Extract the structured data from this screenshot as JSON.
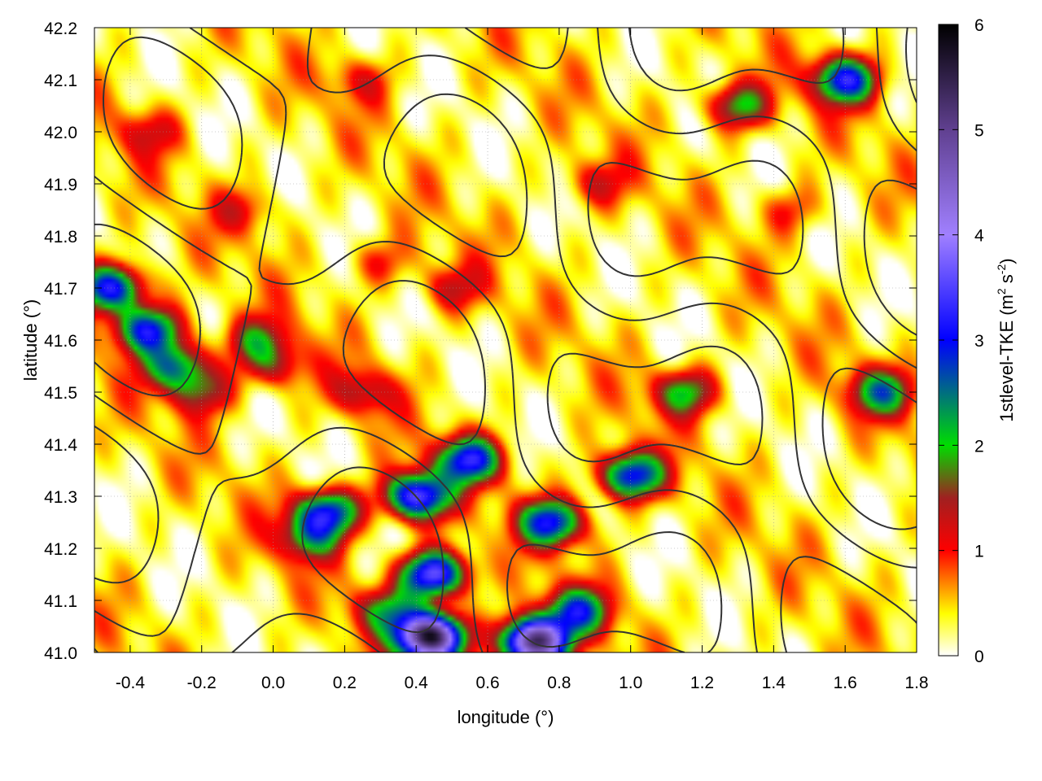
{
  "chart_data": {
    "type": "heatmap",
    "xlabel": "longitude (°)",
    "ylabel": "latitude (°)",
    "colorbar_label_main": "1stlevel-TKE (m",
    "colorbar_label_sup1": "2",
    "colorbar_label_mid": " s",
    "colorbar_label_sup2": "-2",
    "colorbar_label_end": ")",
    "xlim": [
      -0.5,
      1.8
    ],
    "ylim": [
      41.0,
      42.2
    ],
    "x_ticks": [
      -0.4,
      -0.2,
      0.0,
      0.2,
      0.4,
      0.6,
      0.8,
      1.0,
      1.2,
      1.4,
      1.6,
      1.8
    ],
    "x_tick_labels": [
      "-0.4",
      "-0.2",
      "0.0",
      "0.2",
      "0.4",
      "0.6",
      "0.8",
      "1.0",
      "1.2",
      "1.4",
      "1.6",
      "1.8"
    ],
    "y_ticks": [
      41.0,
      41.1,
      41.2,
      41.3,
      41.4,
      41.5,
      41.6,
      41.7,
      41.8,
      41.9,
      42.0,
      42.1,
      42.2
    ],
    "y_tick_labels": [
      "41.0",
      "41.1",
      "41.2",
      "41.3",
      "41.4",
      "41.5",
      "41.6",
      "41.7",
      "41.8",
      "41.9",
      "42.0",
      "42.1",
      "42.2"
    ],
    "colorbar_range": [
      0,
      6
    ],
    "colorbar_ticks": [
      0,
      1,
      2,
      3,
      4,
      5,
      6
    ],
    "colorbar_tick_labels": [
      "0",
      "1",
      "2",
      "3",
      "4",
      "5",
      "6"
    ],
    "colorscale": [
      {
        "v": 0.0,
        "c": "#ffffff"
      },
      {
        "v": 0.4,
        "c": "#ffff00"
      },
      {
        "v": 1.0,
        "c": "#ff0000"
      },
      {
        "v": 1.5,
        "c": "#a02020"
      },
      {
        "v": 2.0,
        "c": "#00dd00"
      },
      {
        "v": 3.0,
        "c": "#0000ff"
      },
      {
        "v": 4.0,
        "c": "#a080ff"
      },
      {
        "v": 5.0,
        "c": "#604090"
      },
      {
        "v": 6.0,
        "c": "#000000"
      }
    ],
    "grid": true,
    "tke_hotspots": [
      {
        "lon": -0.45,
        "lat": 41.7,
        "tke": 3.2
      },
      {
        "lon": -0.35,
        "lat": 41.62,
        "tke": 3.0
      },
      {
        "lon": -0.27,
        "lat": 41.55,
        "tke": 2.4
      },
      {
        "lon": -0.2,
        "lat": 41.5,
        "tke": 1.5
      },
      {
        "lon": -0.05,
        "lat": 41.6,
        "tke": 1.6
      },
      {
        "lon": 0.0,
        "lat": 41.55,
        "tke": 1.4
      },
      {
        "lon": -0.35,
        "lat": 42.0,
        "tke": 1.1
      },
      {
        "lon": -0.08,
        "lat": 41.85,
        "tke": 1.0
      },
      {
        "lon": 0.25,
        "lat": 41.5,
        "tke": 1.3
      },
      {
        "lon": 0.15,
        "lat": 41.27,
        "tke": 3.0
      },
      {
        "lon": 0.1,
        "lat": 41.22,
        "tke": 1.8
      },
      {
        "lon": 0.4,
        "lat": 41.3,
        "tke": 3.6
      },
      {
        "lon": 0.55,
        "lat": 41.37,
        "tke": 3.0
      },
      {
        "lon": 0.45,
        "lat": 41.15,
        "tke": 3.8
      },
      {
        "lon": 0.32,
        "lat": 41.08,
        "tke": 1.8
      },
      {
        "lon": 0.44,
        "lat": 41.03,
        "tke": 5.8
      },
      {
        "lon": 0.73,
        "lat": 41.02,
        "tke": 5.5
      },
      {
        "lon": 0.85,
        "lat": 41.08,
        "tke": 2.5
      },
      {
        "lon": 0.78,
        "lat": 41.25,
        "tke": 3.0
      },
      {
        "lon": 1.0,
        "lat": 41.34,
        "tke": 3.1
      },
      {
        "lon": 1.15,
        "lat": 41.5,
        "tke": 2.0
      },
      {
        "lon": 1.7,
        "lat": 41.5,
        "tke": 2.2
      },
      {
        "lon": 0.5,
        "lat": 41.7,
        "tke": 1.2
      },
      {
        "lon": 0.3,
        "lat": 41.75,
        "tke": 1.0
      },
      {
        "lon": 0.9,
        "lat": 41.9,
        "tke": 1.1
      },
      {
        "lon": 1.3,
        "lat": 42.05,
        "tke": 2.0
      },
      {
        "lon": 1.6,
        "lat": 42.1,
        "tke": 3.0
      },
      {
        "lon": 1.45,
        "lat": 41.85,
        "tke": 1.0
      },
      {
        "lon": 0.25,
        "lat": 42.1,
        "tke": 1.0
      }
    ]
  }
}
